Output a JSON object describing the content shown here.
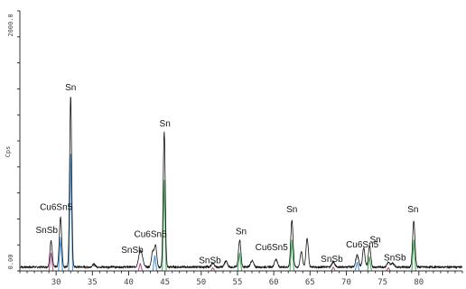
{
  "chart_data": {
    "type": "line",
    "title": "",
    "xlabel": "",
    "ylabel": "Cps",
    "xlim": [
      25,
      86
    ],
    "ylim": [
      0,
      2000
    ],
    "x_ticks": [
      30,
      35,
      40,
      45,
      50,
      55,
      60,
      65,
      70,
      75,
      80
    ],
    "y_tick_labels": [
      {
        "value": 0,
        "text": "0.00"
      },
      {
        "value": 2000,
        "text": "2000.0"
      }
    ],
    "grid": false,
    "legend": "none",
    "series_colors": [
      "#111111",
      "#3a8fd8",
      "#b5468c",
      "#3aaa50"
    ],
    "baseline": 30,
    "peaks": [
      {
        "x": 29.3,
        "height": 200,
        "width": 0.16
      },
      {
        "x": 30.6,
        "height": 380,
        "width": 0.16
      },
      {
        "x": 32.0,
        "height": 1310,
        "width": 0.14
      },
      {
        "x": 35.2,
        "height": 20,
        "width": 0.2
      },
      {
        "x": 41.5,
        "height": 85,
        "width": 0.2
      },
      {
        "x": 41.8,
        "height": 80,
        "width": 0.2
      },
      {
        "x": 43.3,
        "height": 120,
        "width": 0.16
      },
      {
        "x": 43.7,
        "height": 170,
        "width": 0.16
      },
      {
        "x": 44.9,
        "height": 1040,
        "width": 0.14
      },
      {
        "x": 51.6,
        "height": 30,
        "width": 0.2
      },
      {
        "x": 53.4,
        "height": 45,
        "width": 0.2
      },
      {
        "x": 55.3,
        "height": 210,
        "width": 0.16
      },
      {
        "x": 57.0,
        "height": 50,
        "width": 0.2
      },
      {
        "x": 60.3,
        "height": 60,
        "width": 0.2
      },
      {
        "x": 62.5,
        "height": 360,
        "width": 0.16
      },
      {
        "x": 63.8,
        "height": 120,
        "width": 0.16
      },
      {
        "x": 64.6,
        "height": 225,
        "width": 0.16
      },
      {
        "x": 68.2,
        "height": 40,
        "width": 0.2
      },
      {
        "x": 71.5,
        "height": 90,
        "width": 0.2
      },
      {
        "x": 72.4,
        "height": 150,
        "width": 0.16
      },
      {
        "x": 73.2,
        "height": 165,
        "width": 0.16
      },
      {
        "x": 75.8,
        "height": 35,
        "width": 0.2
      },
      {
        "x": 76.4,
        "height": 30,
        "width": 0.2
      },
      {
        "x": 79.3,
        "height": 355,
        "width": 0.16
      }
    ],
    "phase_markers": [
      {
        "x": 29.3,
        "y": 140,
        "color": "#b5468c"
      },
      {
        "x": 30.6,
        "y": 260,
        "color": "#3a8fd8"
      },
      {
        "x": 32.0,
        "y": 900,
        "color": "#3a8fd8"
      },
      {
        "x": 41.6,
        "y": 60,
        "color": "#b5468c"
      },
      {
        "x": 43.6,
        "y": 120,
        "color": "#3a8fd8"
      },
      {
        "x": 44.9,
        "y": 700,
        "color": "#3aaa50"
      },
      {
        "x": 51.6,
        "y": 25,
        "color": "#b5468c"
      },
      {
        "x": 55.3,
        "y": 140,
        "color": "#3aaa50"
      },
      {
        "x": 62.5,
        "y": 240,
        "color": "#3aaa50"
      },
      {
        "x": 68.2,
        "y": 30,
        "color": "#b5468c"
      },
      {
        "x": 71.5,
        "y": 70,
        "color": "#3a8fd8"
      },
      {
        "x": 73.2,
        "y": 110,
        "color": "#3aaa50"
      },
      {
        "x": 75.8,
        "y": 25,
        "color": "#b5468c"
      },
      {
        "x": 79.3,
        "y": 240,
        "color": "#3aaa50"
      }
    ],
    "annotations": [
      {
        "text": "Sn",
        "x": 32.0,
        "y": 1390
      },
      {
        "text": "Cu6Sn5",
        "x": 30.0,
        "y": 470
      },
      {
        "text": "SnSb",
        "x": 28.7,
        "y": 290
      },
      {
        "text": "Sn",
        "x": 45.0,
        "y": 1110
      },
      {
        "text": "Cu6Sn5",
        "x": 43.0,
        "y": 260
      },
      {
        "text": "SnSb",
        "x": 40.5,
        "y": 140
      },
      {
        "text": "SnSb",
        "x": 51.2,
        "y": 60
      },
      {
        "text": "Sn",
        "x": 55.5,
        "y": 280
      },
      {
        "text": "Cu6Sn5",
        "x": 59.7,
        "y": 160
      },
      {
        "text": "Sn",
        "x": 62.5,
        "y": 450
      },
      {
        "text": "SnSb",
        "x": 68.0,
        "y": 70
      },
      {
        "text": "Cu6Sn5",
        "x": 72.2,
        "y": 180
      },
      {
        "text": "Sn",
        "x": 74.0,
        "y": 220
      },
      {
        "text": "SnSb",
        "x": 76.7,
        "y": 80
      },
      {
        "text": "Sn",
        "x": 79.2,
        "y": 450
      }
    ]
  }
}
